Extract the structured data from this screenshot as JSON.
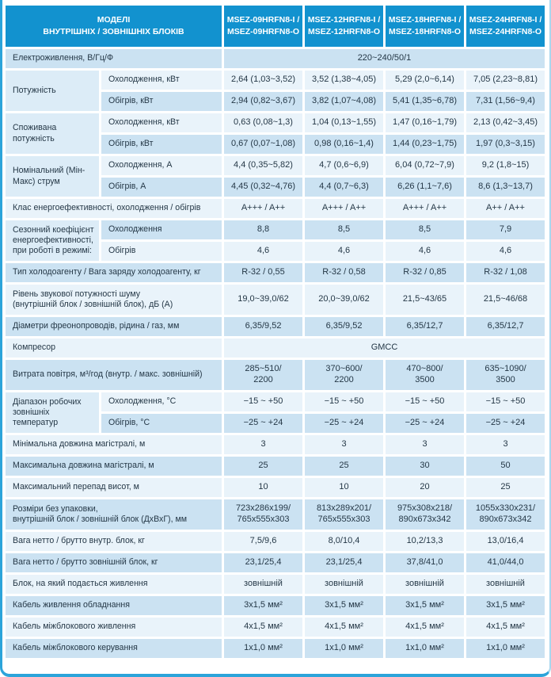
{
  "colors": {
    "header_bg": "#1292cf",
    "row_light": "#e9f3fa",
    "row_dark": "#cbe2f2",
    "group_bg": "#dcecf7",
    "frame": "#2ca4da",
    "text": "#243746"
  },
  "header": {
    "label": "МОДЕЛІ\nВНУТРІШНІХ / ЗОВНІШНІХ БЛОКІВ",
    "models": [
      "MSEZ-09HRFN8-I /\nMSEZ-09HRFN8-O",
      "MSEZ-12HRFN8-I /\nMSEZ-12HRFN8-O",
      "MSEZ-18HRFN8-I /\nMSEZ-18HRFN8-O",
      "MSEZ-24HRFN8-I /\nMSEZ-24HRFN8-O"
    ]
  },
  "rows": [
    {
      "t": "fullspan",
      "label": "Електроживлення, В/Гц/Ф",
      "value": "220~240/50/1"
    },
    {
      "t": "group",
      "group": "Потужність",
      "sub": "Охолодження, кВт",
      "values": [
        "2,64 (1,03~3,52)",
        "3,52 (1,38~4,05)",
        "5,29 (2,0~6,14)",
        "7,05 (2,23~8,81)"
      ]
    },
    {
      "t": "cont",
      "sub": "Обігрів, кВт",
      "values": [
        "2,94 (0,82~3,67)",
        "3,82 (1,07~4,08)",
        "5,41 (1,35~6,78)",
        "7,31 (1,56~9,4)"
      ]
    },
    {
      "t": "group",
      "group": "Споживана потужність",
      "sub": "Охолодження, кВт",
      "values": [
        "0,63 (0,08~1,3)",
        "1,04 (0,13~1,55)",
        "1,47 (0,16~1,79)",
        "2,13 (0,42~3,45)"
      ]
    },
    {
      "t": "cont",
      "sub": "Обігрів, кВт",
      "values": [
        "0,67 (0,07~1,08)",
        "0,98 (0,16~1,4)",
        "1,44 (0,23~1,75)",
        "1,97 (0,3~3,15)"
      ]
    },
    {
      "t": "group",
      "group": "Номінальний (Мін-Макс) струм",
      "sub": "Охолодження, А",
      "values": [
        "4,4 (0,35~5,82)",
        "4,7 (0,6~6,9)",
        "6,04 (0,72~7,9)",
        "9,2 (1,8~15)"
      ]
    },
    {
      "t": "cont",
      "sub": "Обігрів, А",
      "values": [
        "4,45 (0,32~4,76)",
        "4,4 (0,7~6,3)",
        "6,26 (1,1~7,6)",
        "8,6 (1,3~13,7)"
      ]
    },
    {
      "t": "single",
      "label": "Клас енергоефективності, охолодження / обігрів",
      "values": [
        "A+++ / A++",
        "A+++ / A++",
        "A+++ / A++",
        "A++ / A++"
      ]
    },
    {
      "t": "group",
      "group": "Сезонний коефіцієнт енергоефективності, при роботі в режимі:",
      "sub": "Охолодження",
      "values": [
        "8,8",
        "8,5",
        "8,5",
        "7,9"
      ]
    },
    {
      "t": "cont",
      "sub": "Обігрів",
      "values": [
        "4,6",
        "4,6",
        "4,6",
        "4,6"
      ]
    },
    {
      "t": "single",
      "label": "Тип холодоагенту / Вага заряду холодоагенту, кг",
      "values": [
        "R-32 / 0,55",
        "R-32 / 0,58",
        "R-32 / 0,85",
        "R-32 / 1,08"
      ]
    },
    {
      "t": "single",
      "tall": true,
      "label": "Рівень звукової потужності шуму\n(внутрішній блок / зовнішній блок), дБ (А)",
      "values": [
        "19,0~39,0/62",
        "20,0~39,0/62",
        "21,5~43/65",
        "21,5~46/68"
      ]
    },
    {
      "t": "single",
      "label": "Діаметри фреонопроводів, рідина / газ, мм",
      "values": [
        "6,35/9,52",
        "6,35/9,52",
        "6,35/12,7",
        "6,35/12,7"
      ]
    },
    {
      "t": "fullspan",
      "label": "Компресор",
      "value": "GMCC"
    },
    {
      "t": "single",
      "tall": true,
      "label": "Витрата повітря, м³/год (внутр. / макс. зовнішній)",
      "values": [
        "285~510/\n2200",
        "370~600/\n2200",
        "470~800/\n3500",
        "635~1090/\n3500"
      ]
    },
    {
      "t": "group",
      "group": "Діапазон робочих зовнішніх температур",
      "sub": "Охолодження, °С",
      "values": [
        "−15 ~ +50",
        "−15 ~ +50",
        "−15 ~ +50",
        "−15 ~ +50"
      ]
    },
    {
      "t": "cont",
      "sub": "Обігрів, °С",
      "values": [
        "−25 ~ +24",
        "−25 ~ +24",
        "−25 ~ +24",
        "−25 ~ +24"
      ]
    },
    {
      "t": "single",
      "label": "Мінімальна довжина магістралі, м",
      "values": [
        "3",
        "3",
        "3",
        "3"
      ]
    },
    {
      "t": "single",
      "label": "Максимальна довжина магістралі, м",
      "values": [
        "25",
        "25",
        "30",
        "50"
      ]
    },
    {
      "t": "single",
      "label": "Максимальний перепад висот, м",
      "values": [
        "10",
        "10",
        "20",
        "25"
      ]
    },
    {
      "t": "single",
      "tall": true,
      "label": "Розміри без упаковки,\nвнутрішній блок / зовнішній блок (ДхВхГ), мм",
      "values": [
        "723x286x199/\n765x555x303",
        "813x289x201/\n765x555x303",
        "975x308x218/\n890x673x342",
        "1055x330x231/\n890x673x342"
      ]
    },
    {
      "t": "single",
      "label": "Вага нетто / брутто внутр. блок, кг",
      "values": [
        "7,5/9,6",
        "8,0/10,4",
        "10,2/13,3",
        "13,0/16,4"
      ]
    },
    {
      "t": "single",
      "label": "Вага нетто / брутто зовнішній блок, кг",
      "values": [
        "23,1/25,4",
        "23,1/25,4",
        "37,8/41,0",
        "41,0/44,0"
      ]
    },
    {
      "t": "single",
      "label": "Блок, на який подається живлення",
      "values": [
        "зовнішній",
        "зовнішній",
        "зовнішній",
        "зовнішній"
      ]
    },
    {
      "t": "single",
      "label": "Кабель живлення обладнання",
      "values": [
        "3x1,5 мм²",
        "3x1,5 мм²",
        "3x1,5 мм²",
        "3x1,5 мм²"
      ]
    },
    {
      "t": "single",
      "label": "Кабель міжблокового живлення",
      "values": [
        "4x1,5 мм²",
        "4x1,5 мм²",
        "4x1,5 мм²",
        "4x1,5 мм²"
      ]
    },
    {
      "t": "single",
      "label": "Кабель міжблокового керування",
      "values": [
        "1x1,0 мм²",
        "1x1,0 мм²",
        "1x1,0 мм²",
        "1x1,0 мм²"
      ]
    }
  ]
}
